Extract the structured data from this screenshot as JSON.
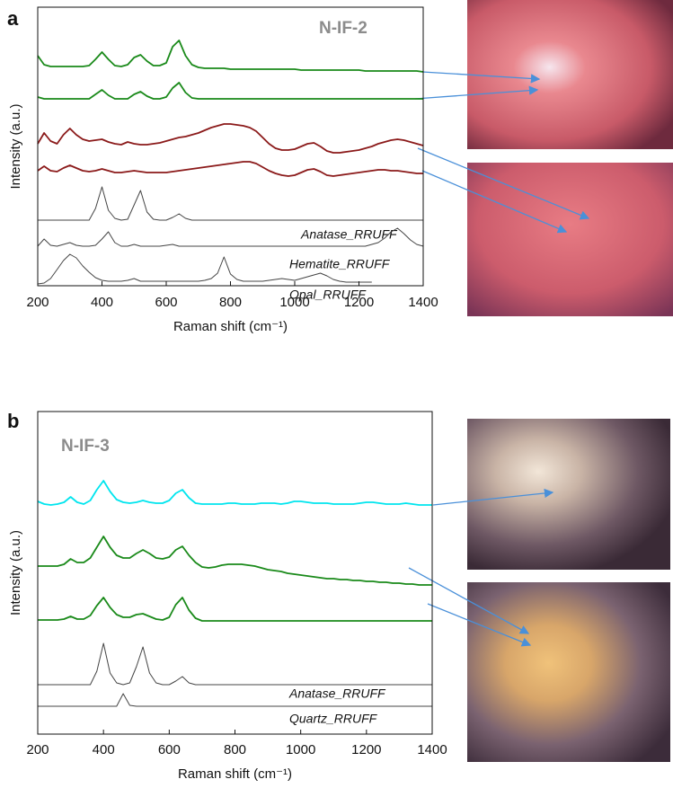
{
  "chart_data": [
    {
      "type": "line",
      "panel_label": "a",
      "annotation": "N-IF-2",
      "x_label": "Raman shift (cm⁻¹)",
      "y_label": "Intensity (a.u.)",
      "xlim": [
        200,
        1400
      ],
      "xticks": [
        200,
        400,
        600,
        800,
        1000,
        1200,
        1400
      ],
      "ylim": [
        0,
        310
      ],
      "x": [
        200,
        220,
        240,
        260,
        280,
        300,
        320,
        340,
        360,
        380,
        400,
        420,
        440,
        460,
        480,
        500,
        520,
        540,
        560,
        580,
        600,
        620,
        640,
        660,
        680,
        700,
        720,
        740,
        760,
        780,
        800,
        820,
        840,
        860,
        880,
        900,
        920,
        940,
        960,
        980,
        1000,
        1020,
        1040,
        1060,
        1080,
        1100,
        1120,
        1140,
        1160,
        1180,
        1200,
        1220,
        1240,
        1260,
        1280,
        1300,
        1320,
        1340,
        1360,
        1380,
        1400
      ],
      "series": [
        {
          "color": "#1a8a1a",
          "values": [
            256,
            246,
            244,
            244,
            244,
            244,
            244,
            244,
            245,
            252,
            260,
            252,
            245,
            244,
            246,
            254,
            257,
            250,
            245,
            245,
            248,
            266,
            273,
            256,
            246,
            243,
            242,
            242,
            242,
            242,
            241,
            241,
            241,
            241,
            241,
            241,
            241,
            241,
            241,
            241,
            241,
            240,
            240,
            240,
            240,
            240,
            240,
            240,
            240,
            240,
            240,
            239,
            239,
            239,
            239,
            239,
            239,
            239,
            239,
            239,
            238
          ]
        },
        {
          "color": "#1a8a1a",
          "values": [
            210,
            208,
            208,
            208,
            208,
            208,
            208,
            208,
            208,
            213,
            218,
            212,
            208,
            208,
            208,
            213,
            216,
            211,
            208,
            208,
            210,
            220,
            226,
            215,
            209,
            208,
            208,
            208,
            208,
            208,
            208,
            208,
            208,
            208,
            208,
            208,
            208,
            208,
            208,
            208,
            208,
            208,
            208,
            208,
            208,
            208,
            208,
            208,
            208,
            208,
            208,
            208,
            208,
            208,
            208,
            208,
            208,
            208,
            208,
            208,
            208
          ]
        },
        {
          "color": "#8b1a1a",
          "values": [
            158,
            170,
            161,
            158,
            168,
            175,
            168,
            163,
            161,
            162,
            163,
            160,
            158,
            157,
            160,
            158,
            157,
            157,
            158,
            159,
            161,
            163,
            165,
            166,
            168,
            170,
            173,
            176,
            178,
            180,
            180,
            179,
            178,
            176,
            172,
            165,
            158,
            153,
            151,
            151,
            152,
            155,
            158,
            159,
            155,
            150,
            148,
            148,
            149,
            150,
            151,
            153,
            155,
            158,
            160,
            162,
            163,
            162,
            160,
            158,
            156
          ]
        },
        {
          "color": "#8b1a1a",
          "values": [
            128,
            133,
            128,
            127,
            131,
            134,
            131,
            128,
            127,
            128,
            130,
            128,
            126,
            126,
            127,
            128,
            127,
            126,
            126,
            126,
            126,
            127,
            128,
            129,
            130,
            131,
            132,
            133,
            134,
            135,
            136,
            137,
            138,
            138,
            136,
            132,
            128,
            125,
            123,
            122,
            123,
            126,
            129,
            130,
            127,
            123,
            122,
            123,
            124,
            125,
            126,
            127,
            128,
            129,
            129,
            128,
            128,
            127,
            126,
            125,
            125
          ]
        },
        {
          "name": "Anatase_RRUFF",
          "color": "#444444",
          "values": [
            73,
            73,
            73,
            73,
            73,
            73,
            73,
            73,
            73,
            86,
            110,
            84,
            75,
            73,
            74,
            90,
            106,
            82,
            74,
            73,
            73,
            76,
            80,
            75,
            73,
            73,
            73,
            73,
            73,
            73,
            73,
            73,
            73,
            73,
            73,
            73,
            73,
            73,
            73,
            73,
            73,
            73,
            73,
            73,
            73,
            73,
            73,
            73,
            73,
            73,
            73,
            73,
            73,
            73,
            73,
            73,
            73,
            73,
            73,
            73,
            73
          ]
        },
        {
          "name": "Hematite_RRUFF",
          "color": "#444444",
          "values": [
            44,
            52,
            45,
            44,
            46,
            48,
            45,
            44,
            44,
            45,
            52,
            60,
            48,
            44,
            44,
            46,
            44,
            44,
            44,
            44,
            45,
            46,
            44,
            44,
            44,
            44,
            44,
            44,
            44,
            44,
            44,
            44,
            44,
            44,
            44,
            44,
            44,
            44,
            44,
            44,
            44,
            44,
            44,
            44,
            44,
            44,
            44,
            44,
            44,
            44,
            44,
            44,
            46,
            48,
            53,
            60,
            64,
            58,
            51,
            46,
            44
          ]
        },
        {
          "name": "Opal_RRUFF",
          "color": "#444444",
          "values": [
            2,
            3,
            8,
            18,
            28,
            35,
            31,
            22,
            15,
            9,
            6,
            5,
            5,
            5,
            6,
            8,
            5,
            5,
            5,
            5,
            5,
            5,
            5,
            5,
            5,
            5,
            6,
            8,
            14,
            32,
            13,
            7,
            5,
            5,
            5,
            5,
            6,
            7,
            8,
            7,
            6,
            8,
            10,
            12,
            14,
            11,
            7,
            5,
            4,
            4,
            4,
            4,
            4,
            null,
            null,
            null,
            null,
            null,
            null,
            null,
            null
          ]
        }
      ]
    },
    {
      "type": "line",
      "panel_label": "b",
      "annotation": "N-IF-3",
      "x_label": "Raman shift (cm⁻¹)",
      "y_label": "Intensity (a.u.)",
      "xlim": [
        200,
        1400
      ],
      "xticks": [
        200,
        400,
        600,
        800,
        1000,
        1200,
        1400
      ],
      "ylim": [
        0,
        359
      ],
      "x": [
        200,
        220,
        240,
        260,
        280,
        300,
        320,
        340,
        360,
        380,
        400,
        420,
        440,
        460,
        480,
        500,
        520,
        540,
        560,
        580,
        600,
        620,
        640,
        660,
        680,
        700,
        720,
        740,
        760,
        780,
        800,
        820,
        840,
        860,
        880,
        900,
        920,
        940,
        960,
        980,
        1000,
        1020,
        1040,
        1060,
        1080,
        1100,
        1120,
        1140,
        1160,
        1180,
        1200,
        1220,
        1240,
        1260,
        1280,
        1300,
        1320,
        1340,
        1360,
        1380,
        1400
      ],
      "series": [
        {
          "color": "#00e5ee",
          "values": [
            259,
            256,
            255,
            256,
            258,
            264,
            258,
            256,
            260,
            272,
            282,
            270,
            261,
            258,
            257,
            258,
            260,
            258,
            257,
            257,
            260,
            268,
            272,
            263,
            257,
            256,
            256,
            256,
            256,
            257,
            257,
            256,
            256,
            256,
            257,
            257,
            257,
            256,
            257,
            259,
            259,
            258,
            257,
            257,
            257,
            256,
            256,
            256,
            256,
            257,
            258,
            258,
            257,
            256,
            256,
            256,
            257,
            256,
            255,
            255,
            255
          ]
        },
        {
          "color": "#1a8a1a",
          "values": [
            187,
            187,
            187,
            187,
            189,
            195,
            191,
            191,
            196,
            208,
            220,
            208,
            199,
            196,
            196,
            201,
            205,
            201,
            196,
            195,
            197,
            205,
            209,
            199,
            191,
            186,
            185,
            186,
            188,
            189,
            189,
            189,
            188,
            187,
            185,
            183,
            182,
            181,
            179,
            178,
            177,
            176,
            175,
            174,
            173,
            173,
            172,
            172,
            171,
            171,
            170,
            170,
            169,
            169,
            168,
            168,
            167,
            167,
            166,
            166,
            166
          ]
        },
        {
          "color": "#1a8a1a",
          "values": [
            127,
            127,
            127,
            127,
            128,
            131,
            128,
            128,
            132,
            143,
            152,
            141,
            133,
            130,
            130,
            133,
            134,
            131,
            128,
            127,
            130,
            144,
            152,
            138,
            129,
            126,
            126,
            126,
            126,
            126,
            126,
            126,
            126,
            126,
            126,
            126,
            126,
            126,
            126,
            126,
            126,
            126,
            126,
            126,
            126,
            126,
            126,
            126,
            126,
            126,
            126,
            126,
            126,
            126,
            126,
            126,
            126,
            126,
            126,
            126,
            126
          ]
        },
        {
          "name": "Anatase_RRUFF",
          "color": "#444444",
          "values": [
            55,
            55,
            55,
            55,
            55,
            55,
            55,
            55,
            55,
            70,
            101,
            68,
            57,
            55,
            57,
            75,
            97,
            68,
            57,
            55,
            55,
            59,
            64,
            57,
            55,
            55,
            55,
            55,
            55,
            55,
            55,
            55,
            55,
            55,
            55,
            55,
            55,
            55,
            55,
            55,
            55,
            55,
            55,
            55,
            55,
            55,
            55,
            55,
            55,
            55,
            55,
            55,
            55,
            55,
            55,
            55,
            55,
            55,
            55,
            55,
            55
          ]
        },
        {
          "name": "Quartz_RRUFF",
          "color": "#444444",
          "values": [
            31,
            31,
            31,
            31,
            31,
            31,
            31,
            31,
            31,
            31,
            31,
            31,
            31,
            45,
            32,
            31,
            31,
            31,
            31,
            31,
            31,
            31,
            31,
            31,
            31,
            31,
            31,
            31,
            31,
            31,
            31,
            31,
            31,
            31,
            31,
            31,
            31,
            31,
            31,
            31,
            31,
            31,
            31,
            31,
            31,
            31,
            31,
            31,
            31,
            31,
            31,
            31,
            31,
            31,
            31,
            31,
            31,
            31,
            31,
            31,
            31
          ]
        }
      ]
    }
  ]
}
